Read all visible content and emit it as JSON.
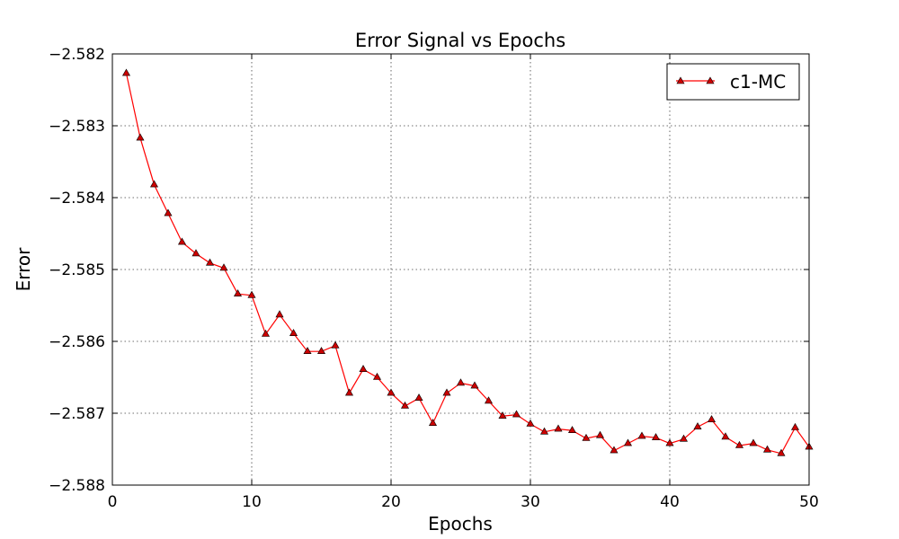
{
  "chart_data": {
    "type": "line",
    "title": "Error Signal vs Epochs",
    "xlabel": "Epochs",
    "ylabel": "Error",
    "xlim": [
      0,
      50
    ],
    "ylim": [
      -2.588,
      -2.582
    ],
    "xticks": [
      0,
      10,
      20,
      30,
      40,
      50
    ],
    "yticks": [
      -2.582,
      -2.583,
      -2.584,
      -2.585,
      -2.586,
      -2.587,
      -2.588
    ],
    "xtick_labels": [
      "0",
      "10",
      "20",
      "30",
      "40",
      "50"
    ],
    "ytick_labels": [
      "−2.582",
      "−2.583",
      "−2.584",
      "−2.585",
      "−2.586",
      "−2.587",
      "−2.588"
    ],
    "grid": true,
    "legend_position": "top-right",
    "series": [
      {
        "name": "c1-MC",
        "color": "#ff0000",
        "marker": "triangle",
        "marker_color": "#cc0000",
        "x": [
          1,
          2,
          3,
          4,
          5,
          6,
          7,
          8,
          9,
          10,
          11,
          12,
          13,
          14,
          15,
          16,
          17,
          18,
          19,
          20,
          21,
          22,
          23,
          24,
          25,
          26,
          27,
          28,
          29,
          30,
          31,
          32,
          33,
          34,
          35,
          36,
          37,
          38,
          39,
          40,
          41,
          42,
          43,
          44,
          45,
          46,
          47,
          48,
          49,
          50
        ],
        "values": [
          -2.58227,
          -2.58317,
          -2.58382,
          -2.58422,
          -2.58462,
          -2.58478,
          -2.58491,
          -2.58498,
          -2.58534,
          -2.58536,
          -2.5859,
          -2.58563,
          -2.58589,
          -2.58614,
          -2.58614,
          -2.58606,
          -2.58672,
          -2.58639,
          -2.5865,
          -2.58672,
          -2.5869,
          -2.58679,
          -2.58714,
          -2.58672,
          -2.58658,
          -2.58662,
          -2.58683,
          -2.58704,
          -2.58702,
          -2.58715,
          -2.58726,
          -2.58722,
          -2.58724,
          -2.58735,
          -2.58731,
          -2.58752,
          -2.58742,
          -2.58732,
          -2.58734,
          -2.58742,
          -2.58736,
          -2.58719,
          -2.58709,
          -2.58733,
          -2.58745,
          -2.58742,
          -2.58751,
          -2.58756,
          -2.5872,
          -2.58747
        ]
      }
    ]
  }
}
